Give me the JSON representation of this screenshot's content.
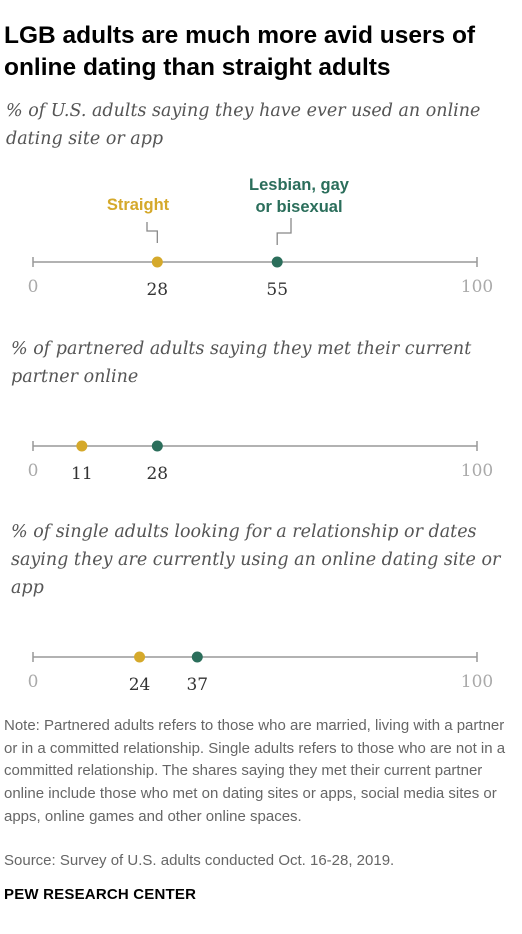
{
  "title": "LGB adults are much more avid users of online dating than straight adults",
  "note": "Note: Partnered adults refers to those who are married, living with a partner or in a committed relationship. Single adults refers to those who are not in a committed relationship. The shares saying they met their current partner online include those who met on dating sites or apps, social media sites or apps, online games and other online spaces.",
  "source": "Source: Survey of U.S. adults conducted Oct. 16-28, 2019.",
  "brand": "PEW RESEARCH CENTER",
  "colors": {
    "straight": "#d5a92b",
    "lgb": "#2b6e5b",
    "axis": "#999999"
  },
  "chart_data": {
    "type": "scatter",
    "xlim": [
      0,
      100
    ],
    "series_names": [
      "Straight",
      "Lesbian, gay or bisexual"
    ],
    "panels": [
      {
        "subtitle": "% of U.S. adults saying they have ever used an online dating site or app",
        "values": [
          28,
          55
        ],
        "axis_labels": [
          "0",
          "100"
        ]
      },
      {
        "subtitle": "% of partnered adults saying they met their current partner online",
        "values": [
          11,
          28
        ],
        "axis_labels": [
          "0",
          "100"
        ]
      },
      {
        "subtitle": "% of single adults looking for a relationship or dates saying they are currently using an online dating site or app",
        "values": [
          24,
          37
        ],
        "axis_labels": [
          "0",
          "100"
        ]
      }
    ],
    "legend_labels": {
      "straight": [
        "Straight"
      ],
      "lgb": [
        "Lesbian, gay",
        "or bisexual"
      ]
    }
  }
}
